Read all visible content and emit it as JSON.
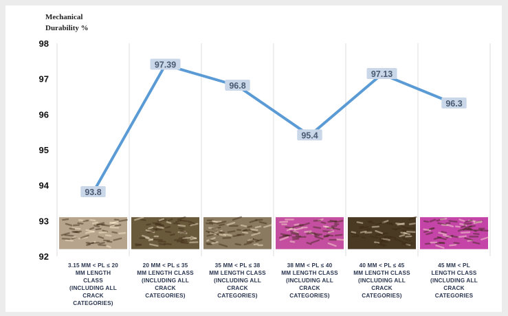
{
  "chart_data": {
    "type": "line",
    "ylabel": [
      "Mechanical",
      "Durability %"
    ],
    "ylim": [
      92,
      98
    ],
    "yticks": [
      "92",
      "93",
      "94",
      "95",
      "96",
      "97",
      "98"
    ],
    "grid": true,
    "categories": [
      [
        "3.15 MM < PL ≤ 20",
        "MM  LENGTH",
        "CLASS",
        "(INCLUDING ALL",
        "CRACK",
        "CATEGORIES)"
      ],
      [
        "20 MM < PL ≤ 35",
        "MM LENGTH CLASS",
        "(INCLUDING ALL",
        "CRACK",
        "CATEGORIES)"
      ],
      [
        "35 MM < PL ≤ 38",
        "MM LENGTH CLASS",
        "(INCLUDING ALL",
        "CRACK",
        "CATEGORIES)"
      ],
      [
        "38 MM < PL ≤ 40",
        "MM LENGTH CLASS",
        "(INCLUDING ALL",
        "CRACK",
        "CATEGORIES)"
      ],
      [
        "40 MM < PL ≤ 45",
        "MM LENGTH CLASS",
        "(INCLUDING ALL",
        "CRACK",
        "CATEGORIES)"
      ],
      [
        "45 MM < PL",
        "LENGTH CLASS",
        "(INCLUDING ALL",
        "CRACK",
        "CATEGORIES"
      ]
    ],
    "values": [
      93.8,
      97.39,
      96.8,
      95.4,
      97.13,
      96.3
    ],
    "data_labels": [
      "93.8",
      "97.39",
      "96.8",
      "95.4",
      "97.13",
      "96.3"
    ],
    "line_color": "#5b9bd5",
    "label_bg_color": "#c9d7e8",
    "thumbnail_backgrounds": [
      "#b7a48c",
      "#6a5a3c",
      "#8a7a60",
      "#c44fa0",
      "#4a3a24",
      "#c444a8"
    ]
  }
}
